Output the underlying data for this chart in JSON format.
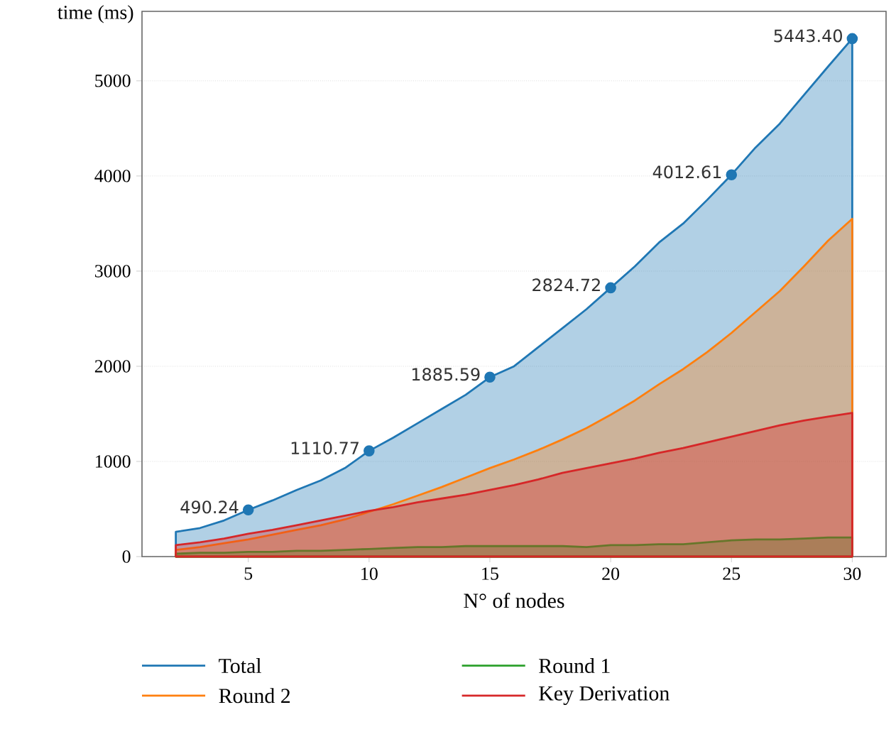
{
  "chart_data": {
    "type": "area",
    "ylabel": "time (ms)",
    "xlabel": "N° of nodes",
    "x": [
      2,
      3,
      4,
      5,
      6,
      7,
      8,
      9,
      10,
      11,
      12,
      13,
      14,
      15,
      16,
      17,
      18,
      19,
      20,
      21,
      22,
      23,
      24,
      25,
      26,
      27,
      28,
      29,
      30
    ],
    "series": [
      {
        "name": "Total",
        "color": "#1f77b4",
        "values": [
          260,
          300,
          380,
          490.24,
          590,
          700,
          800,
          930,
          1110.77,
          1250,
          1400,
          1550,
          1700,
          1885.59,
          2000,
          2200,
          2400,
          2600,
          2824.72,
          3050,
          3300,
          3500,
          3750,
          4012.61,
          4300,
          4550,
          4850,
          5150,
          5443.4
        ]
      },
      {
        "name": "Round 2",
        "color": "#ff7f0e",
        "values": [
          70,
          100,
          140,
          180,
          230,
          280,
          330,
          390,
          470,
          550,
          640,
          730,
          830,
          930,
          1020,
          1120,
          1230,
          1350,
          1490,
          1640,
          1810,
          1970,
          2150,
          2350,
          2570,
          2790,
          3050,
          3320,
          3550
        ]
      },
      {
        "name": "Round 1",
        "color": "#2ca02c",
        "values": [
          30,
          40,
          40,
          50,
          50,
          60,
          60,
          70,
          80,
          90,
          100,
          100,
          110,
          110,
          110,
          110,
          110,
          100,
          120,
          120,
          130,
          130,
          150,
          170,
          180,
          180,
          190,
          200,
          200
        ]
      },
      {
        "name": "Key Derivation",
        "color": "#d62728",
        "values": [
          120,
          150,
          190,
          240,
          280,
          330,
          380,
          430,
          480,
          520,
          570,
          610,
          650,
          700,
          750,
          810,
          880,
          930,
          980,
          1030,
          1090,
          1140,
          1200,
          1260,
          1320,
          1380,
          1430,
          1470,
          1510
        ]
      },
      {
        "type": "scatter",
        "color": "#1f77b4",
        "marker": "circle",
        "x": [
          5,
          10,
          15,
          20,
          25,
          30
        ],
        "values": [
          490.24,
          1110.77,
          1885.59,
          2824.72,
          4012.61,
          5443.4
        ],
        "value_labels": [
          "490.24",
          "1110.77",
          "1885.59",
          "2824.72",
          "4012.61",
          "5443.40"
        ]
      }
    ],
    "xlim": [
      0.6,
      31.4
    ],
    "ylim": [
      0,
      5730
    ],
    "xticks": [
      5,
      10,
      15,
      20,
      25,
      30
    ],
    "yticks": [
      0,
      1000,
      2000,
      3000,
      4000,
      5000
    ],
    "grid": "y",
    "legend": "bottom"
  }
}
